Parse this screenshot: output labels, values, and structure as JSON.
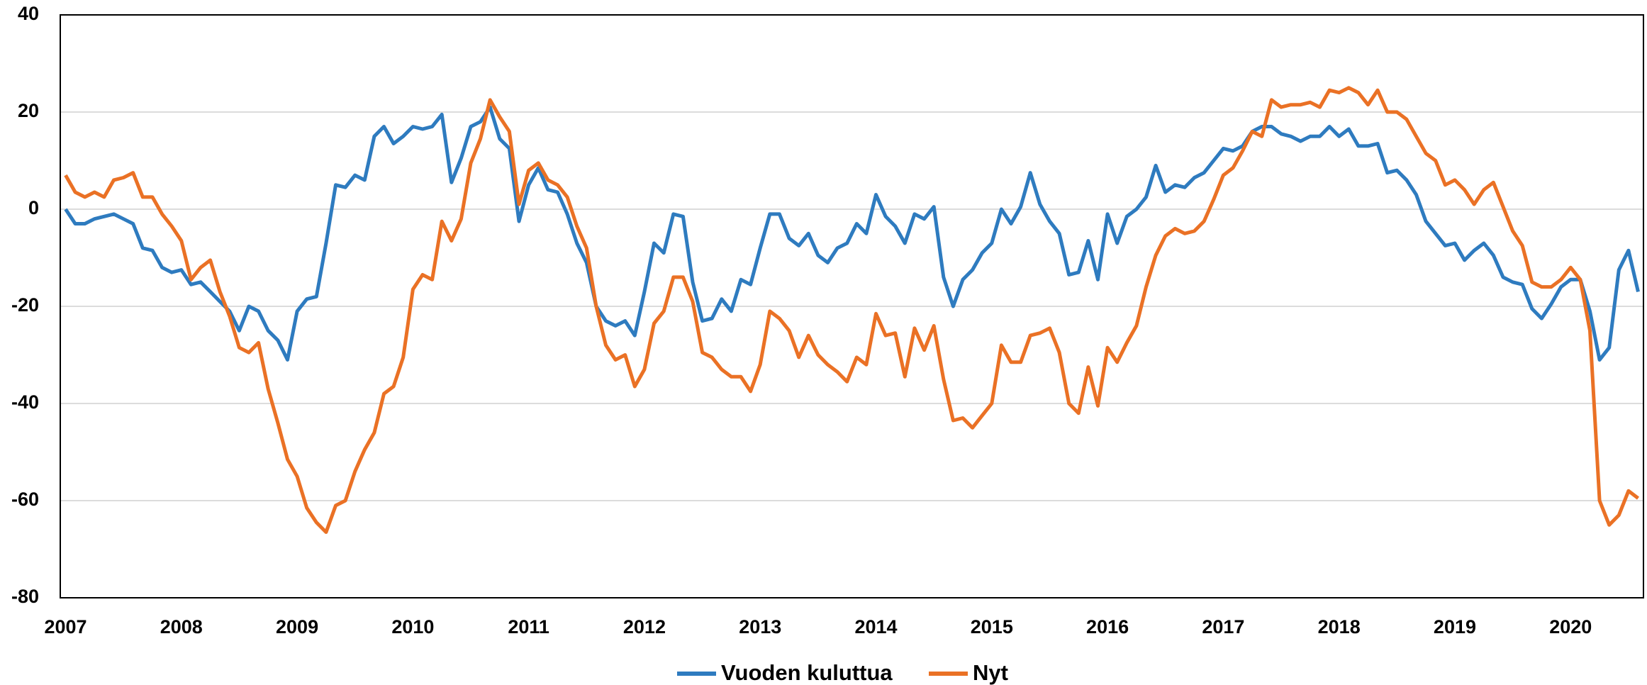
{
  "chart_data": {
    "type": "line",
    "categories": [
      "2007",
      null,
      null,
      null,
      null,
      null,
      null,
      null,
      null,
      null,
      null,
      null,
      "2008",
      null,
      null,
      null,
      null,
      null,
      null,
      null,
      null,
      null,
      null,
      null,
      "2009",
      null,
      null,
      null,
      null,
      null,
      null,
      null,
      null,
      null,
      null,
      null,
      "2010",
      null,
      null,
      null,
      null,
      null,
      null,
      null,
      null,
      null,
      null,
      null,
      "2011",
      null,
      null,
      null,
      null,
      null,
      null,
      null,
      null,
      null,
      null,
      null,
      "2012",
      null,
      null,
      null,
      null,
      null,
      null,
      null,
      null,
      null,
      null,
      null,
      "2013",
      null,
      null,
      null,
      null,
      null,
      null,
      null,
      null,
      null,
      null,
      null,
      "2014",
      null,
      null,
      null,
      null,
      null,
      null,
      null,
      null,
      null,
      null,
      null,
      "2015",
      null,
      null,
      null,
      null,
      null,
      null,
      null,
      null,
      null,
      null,
      null,
      "2016",
      null,
      null,
      null,
      null,
      null,
      null,
      null,
      null,
      null,
      null,
      null,
      "2017",
      null,
      null,
      null,
      null,
      null,
      null,
      null,
      null,
      null,
      null,
      null,
      "2018",
      null,
      null,
      null,
      null,
      null,
      null,
      null,
      null,
      null,
      null,
      null,
      "2019",
      null,
      null,
      null,
      null,
      null,
      null,
      null,
      null,
      null,
      null,
      null,
      "2020",
      null,
      null,
      null,
      null,
      null,
      null,
      null
    ],
    "series": [
      {
        "name": "Vuoden kuluttua",
        "color": "#2e7bbf",
        "values": [
          0,
          -3,
          -3,
          -2,
          -1.5,
          -1,
          -2,
          -3,
          -8,
          -8.5,
          -12,
          -13,
          -12.5,
          -15.5,
          -15,
          -17,
          -19,
          -21,
          -25,
          -20,
          -21,
          -25,
          -27,
          -31,
          -21,
          -18.5,
          -18,
          -7,
          5,
          4.5,
          7,
          6,
          15,
          17,
          13.5,
          15,
          17,
          16.5,
          17,
          19.5,
          5.5,
          10.5,
          17,
          18,
          21,
          14.5,
          12.5,
          -2.5,
          5,
          8.5,
          4,
          3.5,
          -1,
          -7,
          -11,
          -20,
          -23,
          -24,
          -23,
          -26,
          -17,
          -7,
          -9,
          -1,
          -1.5,
          -15,
          -23,
          -22.5,
          -18.5,
          -21,
          -14.5,
          -15.5,
          -8,
          -1,
          -1,
          -6,
          -7.5,
          -5,
          -9.5,
          -11,
          -8,
          -7,
          -3,
          -5,
          3,
          -1.5,
          -3.5,
          -7,
          -1,
          -2,
          0.5,
          -14,
          -20,
          -14.5,
          -12.5,
          -9,
          -7,
          0,
          -3,
          0.5,
          7.5,
          1,
          -2.5,
          -5,
          -13.5,
          -13,
          -6.5,
          -14.5,
          -1,
          -7,
          -1.5,
          0,
          2.5,
          9,
          3.5,
          5,
          4.5,
          6.5,
          7.5,
          10,
          12.5,
          12,
          13,
          16,
          17,
          17,
          15.5,
          15,
          14,
          15,
          15,
          17,
          15,
          16.5,
          13,
          13,
          13.5,
          7.5,
          8,
          6,
          3,
          -2.5,
          -5,
          -7.5,
          -7,
          -10.5,
          -8.5,
          -7,
          -9.5,
          -14,
          -15,
          -15.5,
          -20.5,
          -22.5,
          -19.5,
          -16,
          -14.5,
          -14.5,
          -21,
          -31,
          -28.5,
          -12.5,
          -8.5,
          -17
        ]
      },
      {
        "name": "Nyt",
        "color": "#ea7125",
        "values": [
          7,
          3.5,
          2.5,
          3.5,
          2.5,
          6,
          6.5,
          7.5,
          2.5,
          2.5,
          -1,
          -3.5,
          -6.5,
          -14.5,
          -12,
          -10.5,
          -17,
          -22,
          -28.5,
          -29.5,
          -27.5,
          -37,
          -44,
          -51.5,
          -55,
          -61.5,
          -64.5,
          -66.5,
          -61,
          -60,
          -54,
          -49.5,
          -46,
          -38,
          -36.5,
          -30.5,
          -16.5,
          -13.5,
          -14.5,
          -2.5,
          -6.5,
          -2,
          9.5,
          14.5,
          22.5,
          19,
          16,
          1,
          8,
          9.5,
          6,
          5,
          2.5,
          -3.5,
          -8,
          -20,
          -28,
          -31,
          -30,
          -36.5,
          -33,
          -23.5,
          -21,
          -14,
          -14,
          -19,
          -29.5,
          -30.5,
          -33,
          -34.5,
          -34.5,
          -37.5,
          -32,
          -21,
          -22.5,
          -25,
          -30.5,
          -26,
          -30,
          -32,
          -33.5,
          -35.5,
          -30.5,
          -32,
          -21.5,
          -26,
          -25.5,
          -34.5,
          -24.5,
          -29,
          -24,
          -35,
          -43.5,
          -43,
          -45,
          -42.5,
          -40,
          -28,
          -31.5,
          -31.5,
          -26,
          -25.5,
          -24.5,
          -29.5,
          -40,
          -42,
          -32.5,
          -40.5,
          -28.5,
          -31.5,
          -27.5,
          -24,
          -16,
          -9.5,
          -5.5,
          -4,
          -5,
          -4.5,
          -2.5,
          2,
          7,
          8.5,
          12,
          16,
          15,
          22.5,
          21,
          21.5,
          21.5,
          22,
          21,
          24.5,
          24,
          25,
          24,
          21.5,
          24.5,
          20,
          20,
          18.5,
          15,
          11.5,
          10,
          5,
          6,
          4,
          1,
          4,
          5.5,
          0.5,
          -4.5,
          -7.5,
          -15,
          -16,
          -16,
          -14.5,
          -12,
          -14.5,
          -25,
          -60,
          -65,
          -63,
          -58,
          -59.5
        ]
      }
    ],
    "ylim": [
      -80,
      40
    ],
    "yticks": [
      -80,
      -60,
      -40,
      -20,
      0,
      20,
      40
    ],
    "grid": true,
    "legend": "bottom"
  }
}
